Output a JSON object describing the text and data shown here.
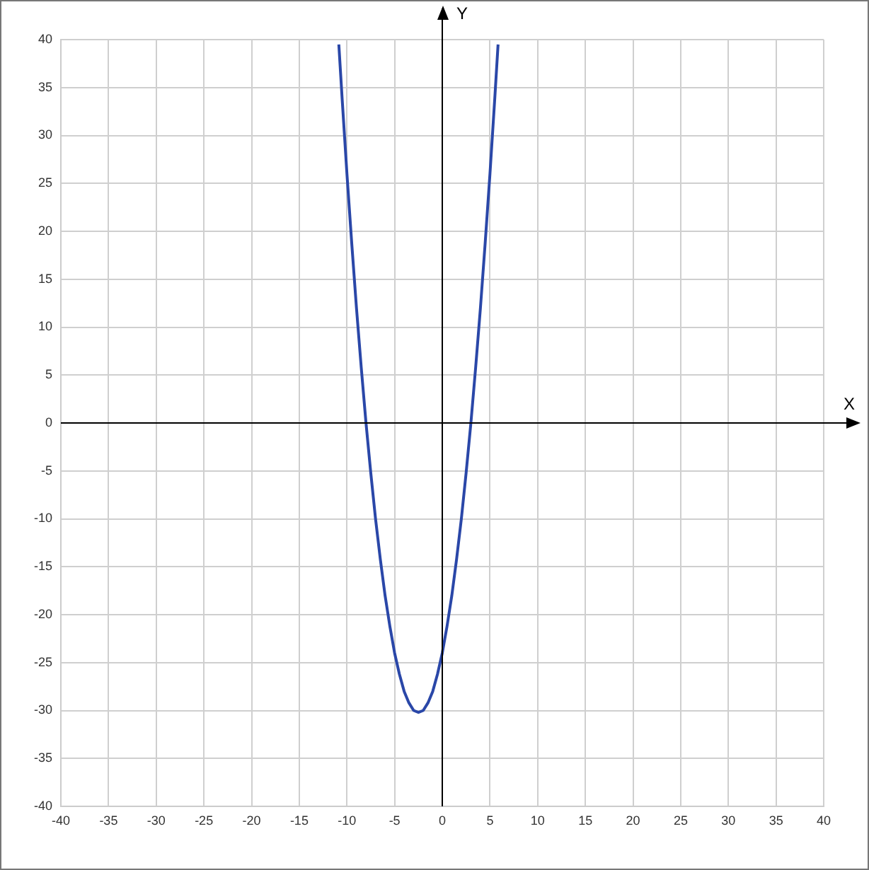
{
  "chart_data": {
    "type": "line",
    "xlabel": "X",
    "ylabel": "Y",
    "x": [
      -10.85,
      -10.5,
      -10,
      -9.5,
      -9,
      -8.5,
      -8,
      -7.5,
      -7,
      -6.5,
      -6,
      -5.5,
      -5,
      -4.5,
      -4,
      -3.5,
      -3,
      -2.5,
      -2,
      -1.5,
      -1,
      -0.5,
      0,
      0.5,
      1,
      1.5,
      2,
      2.5,
      3,
      3.5,
      4,
      4.5,
      5,
      5.5,
      5.85
    ],
    "series": [
      {
        "color": "#2a47a8",
        "values": [
          39.5,
          33.8,
          26,
          18.8,
          12,
          5.8,
          0,
          -5.2,
          -10,
          -14.2,
          -18,
          -21.2,
          -24,
          -26.2,
          -28,
          -29.2,
          -30,
          -30.2,
          -30,
          -29.2,
          -28,
          -26.2,
          -24,
          -21.2,
          -18,
          -14.2,
          -10,
          -5.2,
          0,
          5.8,
          12,
          18.8,
          26,
          33.8,
          39.5
        ]
      }
    ],
    "xlim": [
      -40,
      40
    ],
    "ylim": [
      -40,
      40
    ],
    "xticks": [
      -40,
      -35,
      -30,
      -25,
      -20,
      -15,
      -10,
      -5,
      0,
      5,
      10,
      15,
      20,
      25,
      30,
      35,
      40
    ],
    "yticks": [
      -40,
      -35,
      -30,
      -25,
      -20,
      -15,
      -10,
      -5,
      0,
      5,
      10,
      15,
      20,
      25,
      30,
      35,
      40
    ],
    "grid": true,
    "legend": false
  }
}
